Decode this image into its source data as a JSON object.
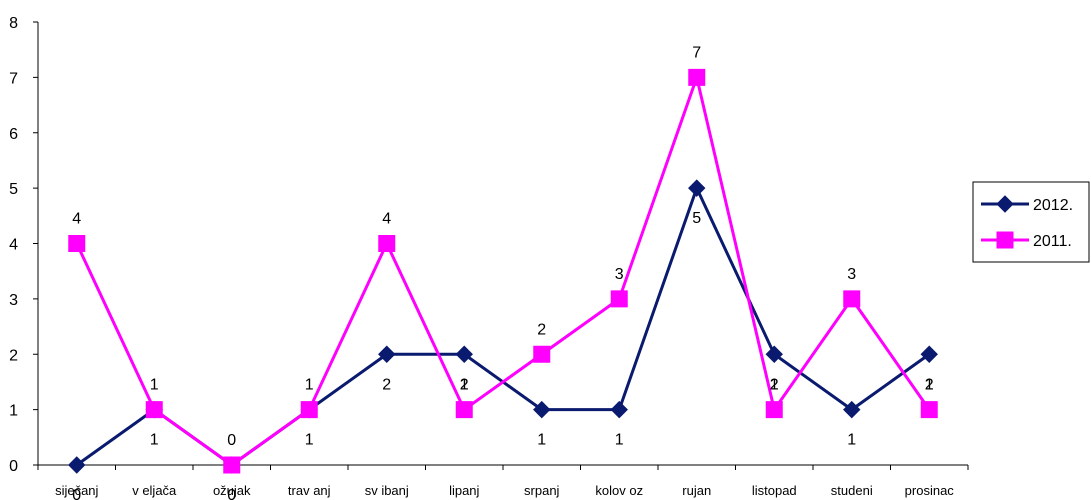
{
  "chart_data": {
    "type": "line",
    "categories": [
      "siječanj",
      "v eljača",
      "ožujak",
      "trav anj",
      "sv ibanj",
      "lipanj",
      "srpanj",
      "kolov oz",
      "rujan",
      "listopad",
      "studeni",
      "prosinac"
    ],
    "ylim": [
      0,
      8
    ],
    "yticks": [
      0,
      1,
      2,
      3,
      4,
      5,
      6,
      7,
      8
    ],
    "grid": false,
    "legend": "right",
    "series": [
      {
        "name": "2012.",
        "values": [
          0,
          1,
          0,
          1,
          2,
          2,
          1,
          1,
          5,
          2,
          1,
          2
        ],
        "color": "#0a1a6e",
        "marker": "diamond"
      },
      {
        "name": "2011.",
        "values": [
          4,
          1,
          0,
          1,
          4,
          1,
          2,
          3,
          7,
          1,
          3,
          1
        ],
        "color": "#ff00ff",
        "marker": "square"
      }
    ]
  }
}
